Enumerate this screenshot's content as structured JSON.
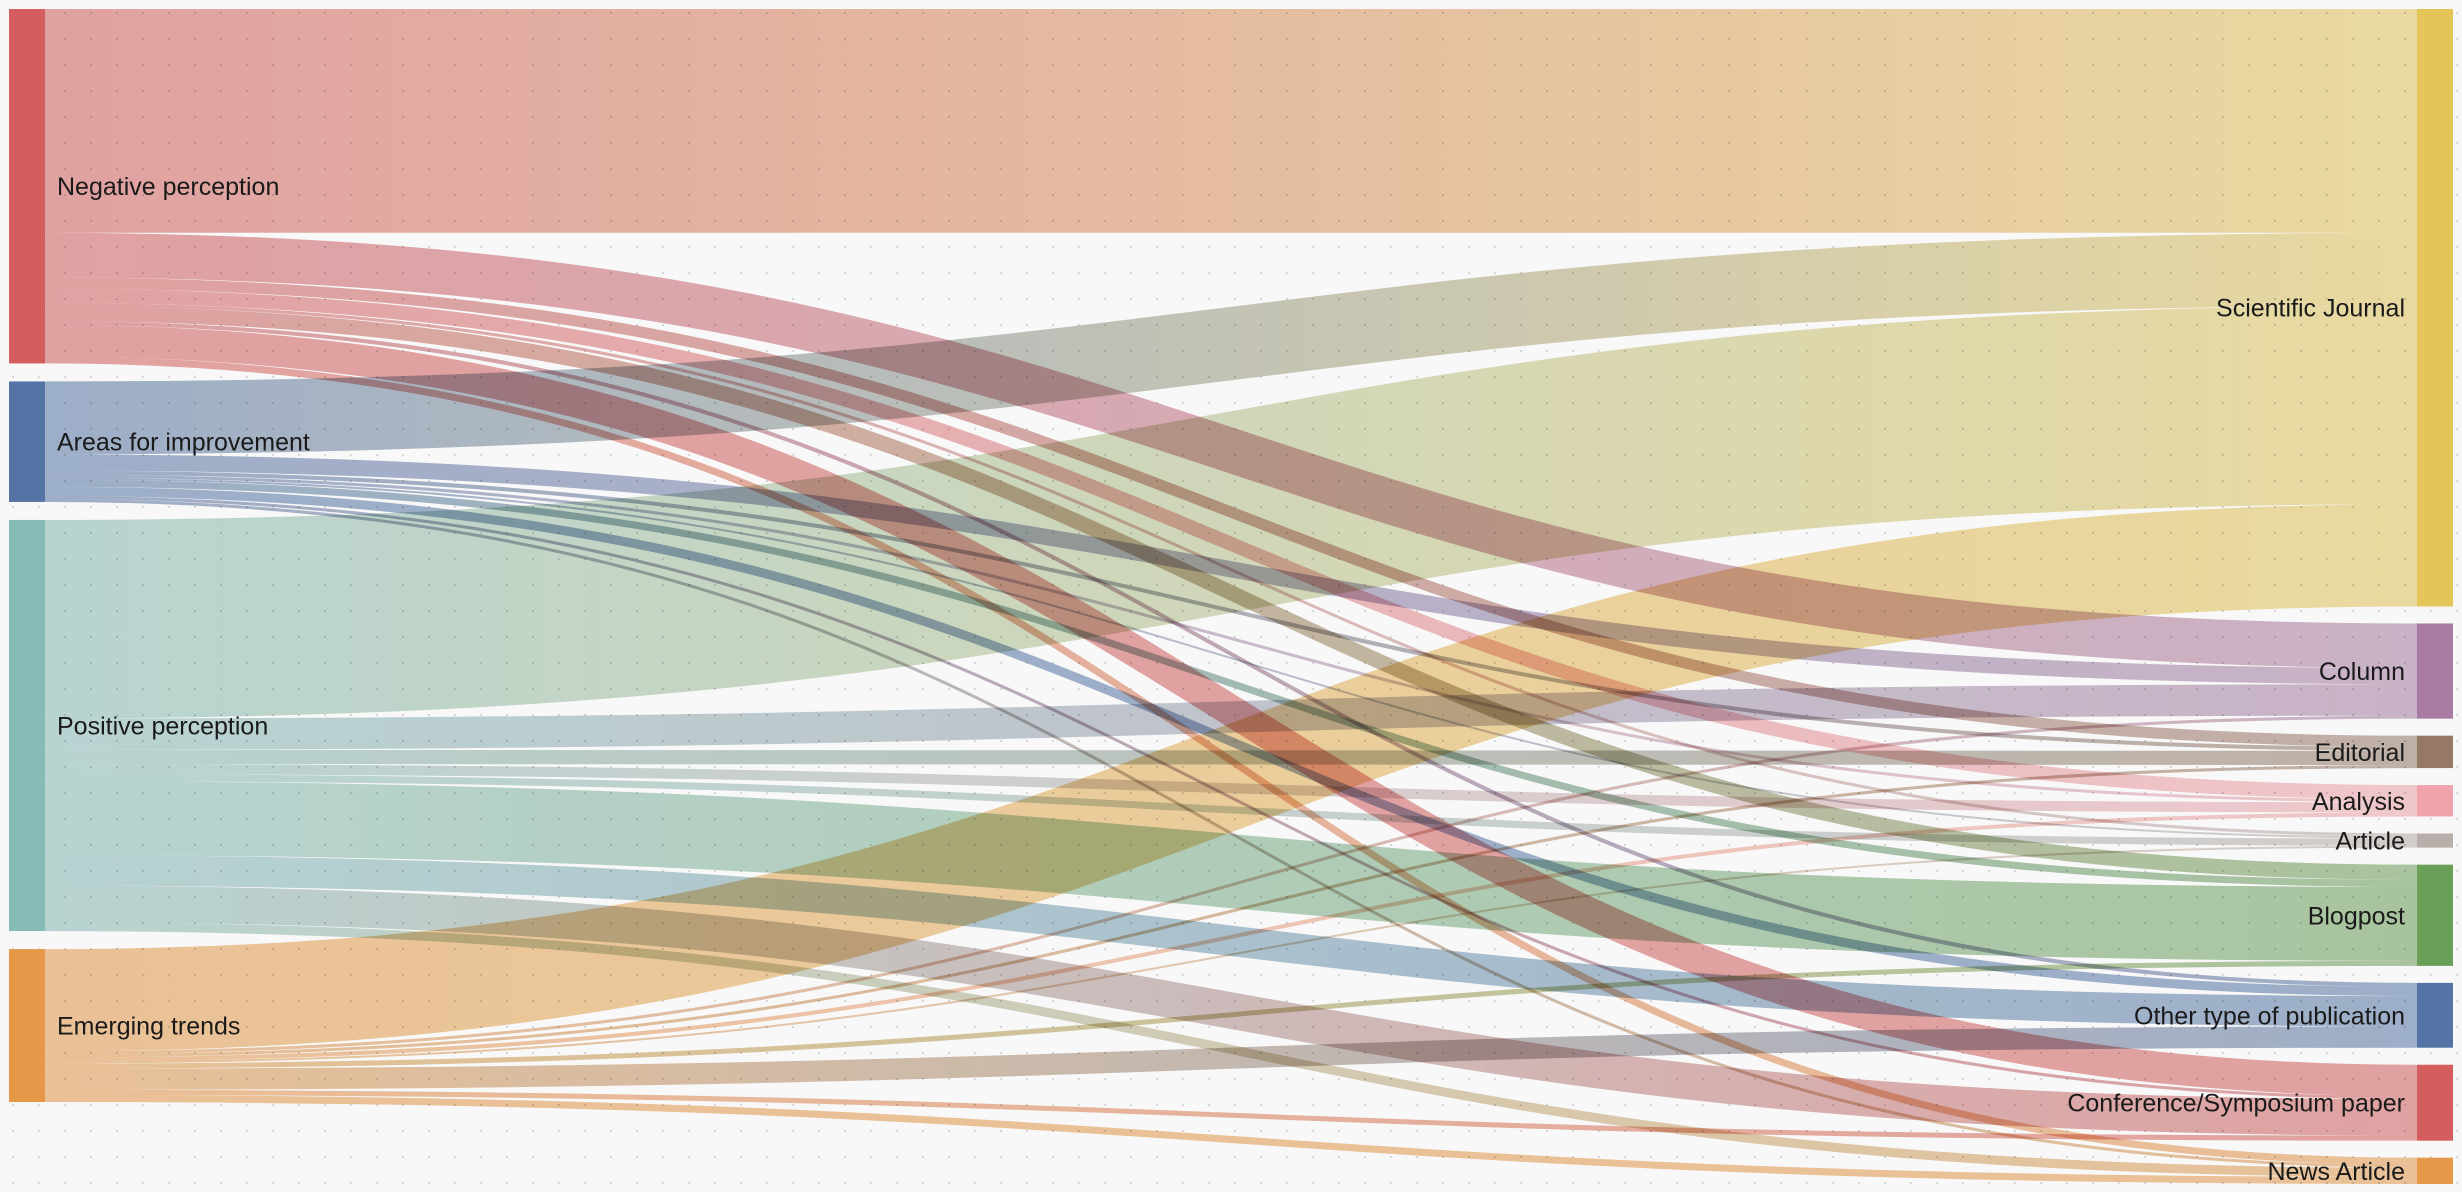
{
  "chart_data": {
    "type": "sankey",
    "title": "",
    "colors": {
      "Negative perception": "#d45d5d",
      "Areas for improvement": "#5574a6",
      "Positive perception": "#86bbb6",
      "Emerging trends": "#e59847",
      "Scientific Journal": "#e4c55a",
      "Column": "#a87ca2",
      "Editorial": "#957866",
      "Analysis": "#efa3aa",
      "Article": "#b8aeaa",
      "Blogpost": "#6a9f58",
      "Other type of publication": "#5574a6",
      "Conference/Symposium paper": "#d45d5d",
      "News Article": "#e59847"
    },
    "sources": [
      "Negative perception",
      "Areas for improvement",
      "Positive perception",
      "Emerging trends"
    ],
    "targets": [
      "Scientific Journal",
      "Column",
      "Editorial",
      "Analysis",
      "Article",
      "Blogpost",
      "Other type of publication",
      "Conference/Symposium paper",
      "News Article"
    ],
    "flows": [
      {
        "source": "Negative perception",
        "target": "Scientific Journal",
        "value": 221
      },
      {
        "source": "Negative perception",
        "target": "Column",
        "value": 44
      },
      {
        "source": "Negative perception",
        "target": "Editorial",
        "value": 11
      },
      {
        "source": "Negative perception",
        "target": "Analysis",
        "value": 14
      },
      {
        "source": "Negative perception",
        "target": "Article",
        "value": 3
      },
      {
        "source": "Negative perception",
        "target": "Blogpost",
        "value": 15
      },
      {
        "source": "Negative perception",
        "target": "Other type of publication",
        "value": 4
      },
      {
        "source": "Negative perception",
        "target": "Conference/Symposium paper",
        "value": 31
      },
      {
        "source": "Negative perception",
        "target": "News Article",
        "value": 7
      },
      {
        "source": "Areas for improvement",
        "target": "Scientific Journal",
        "value": 72
      },
      {
        "source": "Areas for improvement",
        "target": "Column",
        "value": 16
      },
      {
        "source": "Areas for improvement",
        "target": "Editorial",
        "value": 4
      },
      {
        "source": "Areas for improvement",
        "target": "Analysis",
        "value": 3
      },
      {
        "source": "Areas for improvement",
        "target": "Article",
        "value": 2
      },
      {
        "source": "Areas for improvement",
        "target": "Blogpost",
        "value": 7
      },
      {
        "source": "Areas for improvement",
        "target": "Other type of publication",
        "value": 9
      },
      {
        "source": "Areas for improvement",
        "target": "Conference/Symposium paper",
        "value": 3
      },
      {
        "source": "Areas for improvement",
        "target": "News Article",
        "value": 3
      },
      {
        "source": "Positive perception",
        "target": "Scientific Journal",
        "value": 196
      },
      {
        "source": "Positive perception",
        "target": "Column",
        "value": 31
      },
      {
        "source": "Positive perception",
        "target": "Editorial",
        "value": 14
      },
      {
        "source": "Positive perception",
        "target": "Analysis",
        "value": 10
      },
      {
        "source": "Positive perception",
        "target": "Article",
        "value": 7
      },
      {
        "source": "Positive perception",
        "target": "Blogpost",
        "value": 73
      },
      {
        "source": "Positive perception",
        "target": "Other type of publication",
        "value": 30
      },
      {
        "source": "Positive perception",
        "target": "Conference/Symposium paper",
        "value": 36
      },
      {
        "source": "Positive perception",
        "target": "News Article",
        "value": 9
      },
      {
        "source": "Emerging trends",
        "target": "Scientific Journal",
        "value": 101
      },
      {
        "source": "Emerging trends",
        "target": "Column",
        "value": 3
      },
      {
        "source": "Emerging trends",
        "target": "Editorial",
        "value": 3
      },
      {
        "source": "Emerging trends",
        "target": "Analysis",
        "value": 4
      },
      {
        "source": "Emerging trends",
        "target": "Article",
        "value": 2
      },
      {
        "source": "Emerging trends",
        "target": "Blogpost",
        "value": 5
      },
      {
        "source": "Emerging trends",
        "target": "Other type of publication",
        "value": 21
      },
      {
        "source": "Emerging trends",
        "target": "Conference/Symposium paper",
        "value": 5
      },
      {
        "source": "Emerging trends",
        "target": "News Article",
        "value": 7
      }
    ]
  }
}
